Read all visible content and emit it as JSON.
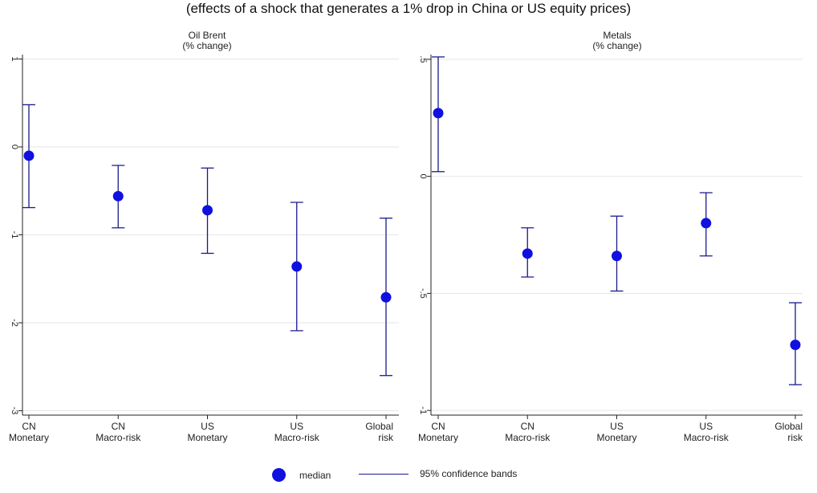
{
  "figure": {
    "title": "(effects of a shock that generates a 1% drop in China or US equity prices)"
  },
  "legend": {
    "median_label": "median",
    "bands_label": "95% confidence bands"
  },
  "colors": {
    "marker": "#1010e0",
    "bands": "#1a1a8c",
    "grid": "#e6e6e6",
    "axis": "#222222"
  },
  "chart_data": [
    {
      "type": "scatter",
      "title": "Oil Brent",
      "subtitle": "(% change)",
      "categories": [
        "CN\nMonetary",
        "CN\nMacro-risk",
        "US\nMonetary",
        "US\nMacro-risk",
        "Global\nrisk"
      ],
      "median": [
        -0.1,
        -0.56,
        -0.72,
        -1.36,
        -1.71
      ],
      "lower": [
        -0.69,
        -0.92,
        -1.21,
        -2.09,
        -2.6
      ],
      "upper": [
        0.48,
        -0.21,
        -0.24,
        -0.63,
        -0.81
      ],
      "ylim": [
        -3.05,
        1.05
      ],
      "yticks": [
        1,
        0,
        -1,
        -2,
        -3
      ],
      "ytick_labels": [
        "1",
        "0",
        "-1",
        "-2",
        "-3"
      ],
      "grid": true
    },
    {
      "type": "scatter",
      "title": "Metals",
      "subtitle": "(% change)",
      "categories": [
        "CN\nMonetary",
        "CN\nMacro-risk",
        "US\nMonetary",
        "US\nMacro-risk",
        "Global\nrisk"
      ],
      "median": [
        0.27,
        -0.33,
        -0.34,
        -0.2,
        -0.72
      ],
      "lower": [
        0.02,
        -0.43,
        -0.49,
        -0.34,
        -0.89
      ],
      "upper": [
        0.51,
        -0.22,
        -0.17,
        -0.07,
        -0.54
      ],
      "ylim": [
        -1.02,
        0.52
      ],
      "yticks": [
        0.5,
        0,
        -0.5,
        -1
      ],
      "ytick_labels": [
        ".5",
        "0",
        "-.5",
        "-1"
      ],
      "grid": true
    }
  ]
}
